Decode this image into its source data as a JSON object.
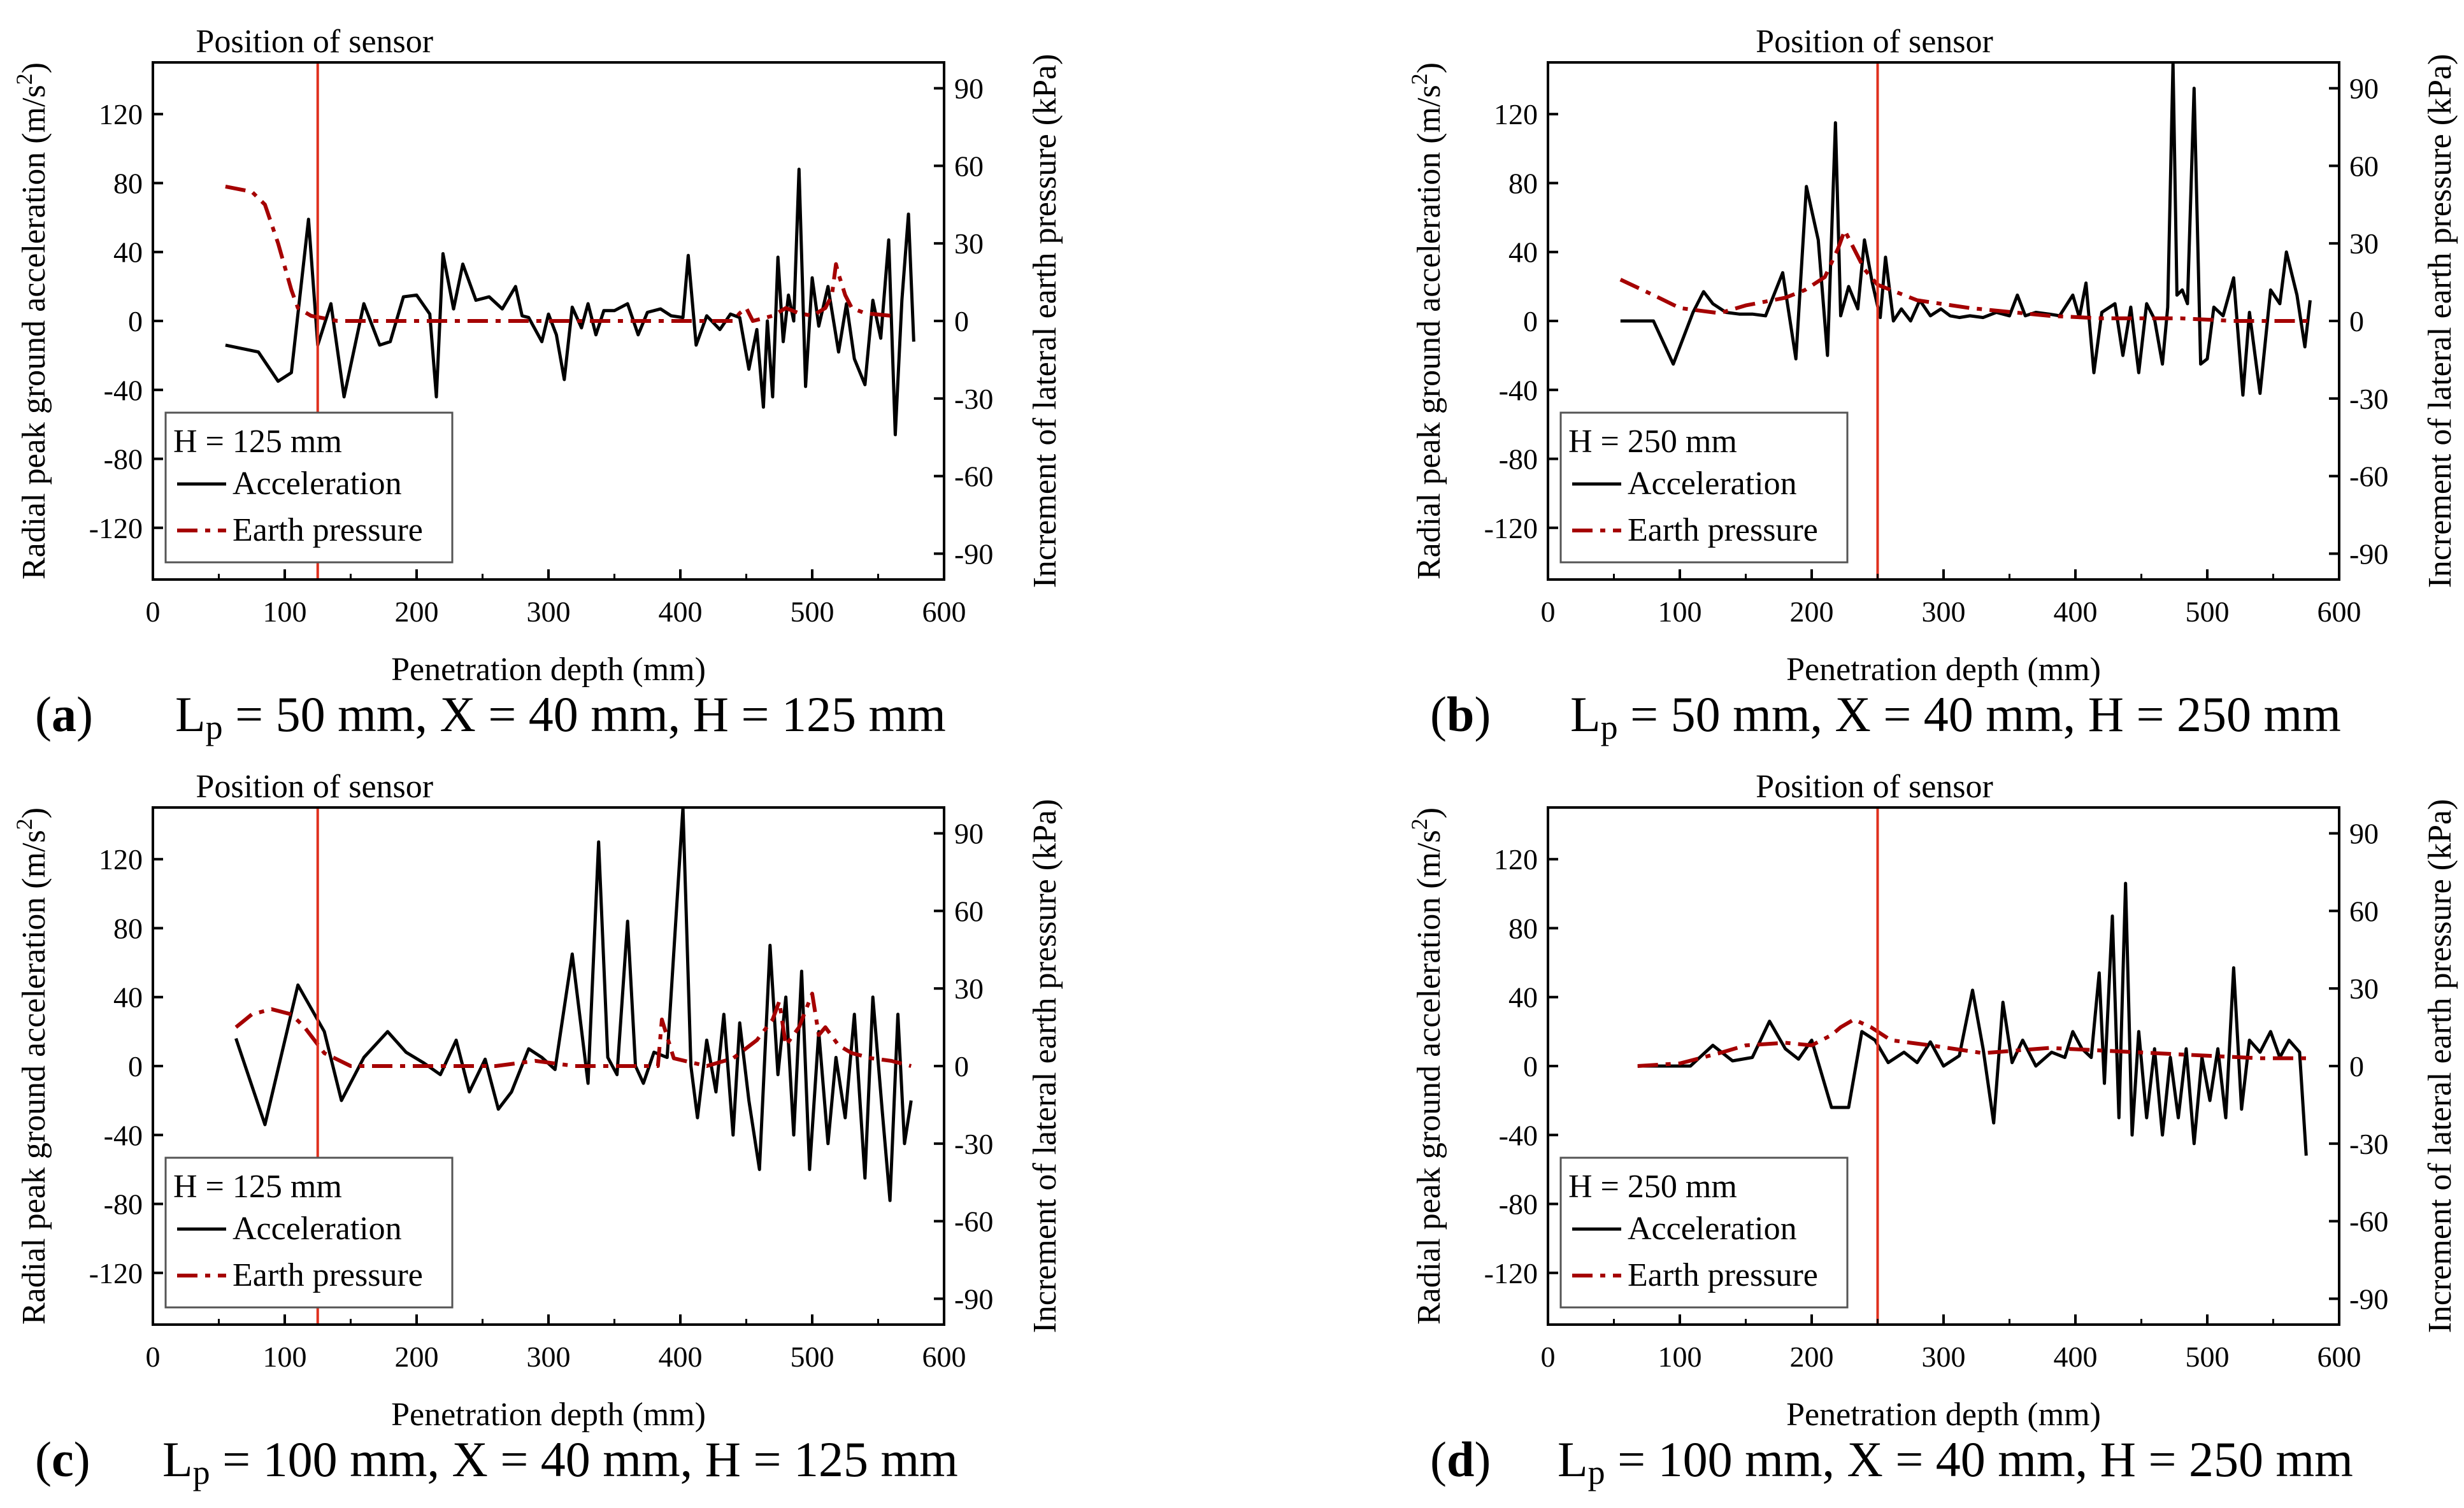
{
  "figure": {
    "panels": [
      {
        "id": "a",
        "letter": "a",
        "caption_prefix": "L",
        "caption_sub": "p",
        "caption_rest": " = 50 mm, X = 40 mm, H = 125 mm"
      },
      {
        "id": "b",
        "letter": "b",
        "caption_prefix": "L",
        "caption_sub": "p",
        "caption_rest": " = 50 mm, X = 40 mm, H = 250 mm"
      },
      {
        "id": "c",
        "letter": "c",
        "caption_prefix": "L",
        "caption_sub": "p",
        "caption_rest": " = 100 mm, X = 40 mm, H = 125 mm"
      },
      {
        "id": "d",
        "letter": "d",
        "caption_prefix": "L",
        "caption_sub": "p",
        "caption_rest": " = 100 mm, X = 40 mm, H = 250 mm"
      }
    ]
  },
  "colors": {
    "acceleration": "#000000",
    "earth_pressure": "#a50000",
    "sensor_line": "#e0301e",
    "axes": "#000000"
  },
  "chart_data": [
    {
      "id": "a",
      "type": "line",
      "title": "",
      "annotation": "Position of sensor",
      "sensor_position": 125,
      "xlabel": "Penetration depth (mm)",
      "ylabel": "Radial peak ground acceleration (m/s2)",
      "ylabel_main": "Radial peak ground acceleration (m/s",
      "ylabel_sup": "2",
      "ylabel_end": ")",
      "y2label": "Increment of lateral earth pressure (kPa)",
      "xlim": [
        0,
        600
      ],
      "ylim": [
        -150,
        150
      ],
      "y2lim": [
        -100,
        100
      ],
      "xticks": [
        0,
        100,
        200,
        300,
        400,
        500,
        600
      ],
      "yticks": [
        -120,
        -80,
        -40,
        0,
        40,
        80,
        120
      ],
      "y2ticks": [
        -90,
        -60,
        -30,
        0,
        30,
        60,
        90
      ],
      "legend_title": "H = 125 mm",
      "legend_position": "lower-left",
      "series": [
        {
          "name": "Acceleration",
          "axis": "left",
          "style": "solid",
          "x": [
            55,
            80,
            95,
            105,
            118,
            125,
            135,
            145,
            160,
            172,
            180,
            190,
            200,
            210,
            215,
            220,
            228,
            235,
            245,
            255,
            265,
            275,
            280,
            285,
            295,
            300,
            306,
            312,
            318,
            325,
            330,
            336,
            342,
            350,
            360,
            368,
            375,
            385,
            393,
            402,
            406,
            412,
            420,
            430,
            438,
            445,
            452,
            458,
            463,
            466,
            470,
            474,
            478,
            482,
            486,
            490,
            495,
            500,
            505,
            512,
            520,
            526,
            532,
            540,
            546,
            552,
            558,
            563,
            568,
            573,
            577
          ],
          "y": [
            -14,
            -18,
            -35,
            -30,
            59,
            -14,
            10,
            -44,
            10,
            -14,
            -12,
            14,
            15,
            4,
            -44,
            39,
            7,
            33,
            12,
            14,
            7,
            20,
            3,
            2,
            -12,
            4,
            -8,
            -34,
            8,
            -4,
            10,
            -8,
            6,
            6,
            10,
            -8,
            5,
            7,
            3,
            2,
            38,
            -14,
            3,
            -5,
            4,
            2,
            -28,
            -5,
            -50,
            0,
            -44,
            37,
            -12,
            15,
            0,
            88,
            -38,
            25,
            -3,
            20,
            -18,
            10,
            -22,
            -37,
            12,
            -10,
            47,
            -66,
            12,
            62,
            -12
          ]
        },
        {
          "name": "Earth pressure",
          "axis": "right",
          "style": "dashed",
          "x": [
            55,
            75,
            85,
            95,
            105,
            110,
            120,
            130,
            140,
            200,
            300,
            400,
            440,
            445,
            450,
            455,
            470,
            480,
            490,
            500,
            510,
            515,
            518,
            520,
            522,
            525,
            530,
            540,
            560
          ],
          "y": [
            52,
            50,
            45,
            30,
            12,
            5,
            2,
            1,
            0,
            0,
            0,
            0,
            0,
            3,
            5,
            0,
            2,
            5,
            3,
            2,
            5,
            10,
            22,
            18,
            15,
            10,
            5,
            3,
            2
          ]
        }
      ]
    },
    {
      "id": "b",
      "type": "line",
      "title": "",
      "annotation": "Position of sensor",
      "sensor_position": 250,
      "xlabel": "Penetration depth (mm)",
      "ylabel": "Radial peak ground acceleration (m/s2)",
      "ylabel_main": "Radial peak ground acceleration (m/s",
      "ylabel_sup": "2",
      "ylabel_end": ")",
      "y2label": "Increment of lateral earth pressure (kPa)",
      "xlim": [
        0,
        600
      ],
      "ylim": [
        -150,
        150
      ],
      "y2lim": [
        -100,
        100
      ],
      "xticks": [
        0,
        100,
        200,
        300,
        400,
        500,
        600
      ],
      "yticks": [
        -120,
        -80,
        -40,
        0,
        40,
        80,
        120
      ],
      "y2ticks": [
        -90,
        -60,
        -30,
        0,
        30,
        60,
        90
      ],
      "legend_title": "H = 250 mm",
      "legend_position": "lower-left",
      "series": [
        {
          "name": "Acceleration",
          "axis": "left",
          "style": "solid",
          "x": [
            55,
            70,
            80,
            95,
            110,
            118,
            125,
            135,
            145,
            155,
            165,
            178,
            188,
            196,
            205,
            212,
            218,
            222,
            228,
            235,
            240,
            246,
            252,
            256,
            262,
            268,
            275,
            282,
            290,
            298,
            305,
            312,
            320,
            330,
            340,
            350,
            356,
            362,
            370,
            380,
            388,
            398,
            403,
            408,
            414,
            420,
            430,
            436,
            442,
            448,
            454,
            460,
            466,
            470,
            474,
            477,
            481,
            485,
            490,
            495,
            500,
            505,
            512,
            520,
            527,
            532,
            540,
            548,
            555,
            560,
            568,
            574,
            578
          ],
          "y": [
            0,
            0,
            0,
            -25,
            5,
            17,
            10,
            5,
            4,
            4,
            3,
            28,
            -22,
            78,
            47,
            -20,
            115,
            3,
            20,
            7,
            47,
            22,
            2,
            37,
            0,
            7,
            0,
            12,
            3,
            7,
            3,
            2,
            3,
            2,
            5,
            3,
            15,
            3,
            5,
            4,
            3,
            15,
            2,
            22,
            -30,
            5,
            10,
            -20,
            8,
            -30,
            10,
            1,
            -25,
            8,
            150,
            15,
            18,
            10,
            135,
            -25,
            -22,
            8,
            3,
            25,
            -43,
            5,
            -42,
            18,
            10,
            40,
            15,
            -15,
            12
          ]
        },
        {
          "name": "Earth pressure",
          "axis": "right",
          "style": "dashed",
          "x": [
            55,
            80,
            100,
            130,
            150,
            180,
            195,
            210,
            220,
            225,
            230,
            240,
            250,
            280,
            320,
            380,
            420,
            480,
            520,
            578
          ],
          "y": [
            16,
            10,
            5,
            3,
            6,
            9,
            12,
            17,
            28,
            35,
            30,
            20,
            14,
            8,
            5,
            2,
            1,
            1,
            0,
            0
          ]
        }
      ]
    },
    {
      "id": "c",
      "type": "line",
      "title": "",
      "annotation": "Position of sensor",
      "sensor_position": 125,
      "xlabel": "Penetration depth (mm)",
      "ylabel": "Radial peak ground acceleration (m/s2)",
      "ylabel_main": "Radial peak ground acceleration (m/s",
      "ylabel_sup": "2",
      "ylabel_end": ")",
      "y2label": "Increment of lateral earth pressure (kPa)",
      "xlim": [
        0,
        600
      ],
      "ylim": [
        -150,
        150
      ],
      "y2lim": [
        -100,
        100
      ],
      "xticks": [
        0,
        100,
        200,
        300,
        400,
        500,
        600
      ],
      "yticks": [
        -120,
        -80,
        -40,
        0,
        40,
        80,
        120
      ],
      "y2ticks": [
        -90,
        -60,
        -30,
        0,
        30,
        60,
        90
      ],
      "legend_title": "H = 125 mm",
      "legend_position": "lower-left",
      "series": [
        {
          "name": "Acceleration",
          "axis": "left",
          "style": "solid",
          "x": [
            63,
            85,
            110,
            130,
            143,
            160,
            178,
            192,
            205,
            218,
            230,
            240,
            252,
            262,
            272,
            285,
            295,
            305,
            318,
            330,
            338,
            345,
            352,
            360,
            366,
            372,
            380,
            390,
            402,
            408,
            413,
            420,
            427,
            433,
            440,
            445,
            452,
            460,
            468,
            474,
            480,
            486,
            492,
            498,
            505,
            512,
            518,
            525,
            532,
            540,
            546,
            553,
            559,
            565,
            570,
            575
          ],
          "y": [
            16,
            -34,
            47,
            20,
            -20,
            5,
            20,
            8,
            2,
            -5,
            15,
            -15,
            4,
            -25,
            -15,
            10,
            5,
            -2,
            65,
            -10,
            130,
            5,
            -5,
            84,
            0,
            -10,
            8,
            5,
            150,
            0,
            -30,
            15,
            -15,
            30,
            -40,
            25,
            -20,
            -60,
            70,
            -5,
            40,
            -40,
            55,
            -60,
            20,
            -45,
            5,
            -30,
            30,
            -65,
            40,
            -25,
            -78,
            30,
            -45,
            -20
          ]
        },
        {
          "name": "Earth pressure",
          "axis": "right",
          "style": "dashed",
          "x": [
            63,
            75,
            90,
            105,
            115,
            130,
            150,
            200,
            260,
            290,
            320,
            370,
            383,
            386,
            395,
            420,
            440,
            458,
            470,
            475,
            480,
            490,
            500,
            505,
            510,
            520,
            530,
            545,
            560,
            575
          ],
          "y": [
            15,
            20,
            22,
            20,
            15,
            5,
            0,
            0,
            0,
            2,
            0,
            0,
            0,
            18,
            3,
            0,
            3,
            10,
            18,
            25,
            8,
            15,
            28,
            12,
            15,
            8,
            5,
            3,
            2,
            0
          ]
        }
      ]
    },
    {
      "id": "d",
      "type": "line",
      "title": "",
      "annotation": "Position of sensor",
      "sensor_position": 250,
      "xlabel": "Penetration depth (mm)",
      "ylabel": "Radial peak ground acceleration (m/s2)",
      "ylabel_main": "Radial peak ground acceleration (m/s",
      "ylabel_sup": "2",
      "ylabel_end": ")",
      "y2label": "Increment of lateral earth pressure (kPa)",
      "xlim": [
        0,
        600
      ],
      "ylim": [
        -150,
        150
      ],
      "y2lim": [
        -100,
        100
      ],
      "xticks": [
        0,
        100,
        200,
        300,
        400,
        500,
        600
      ],
      "yticks": [
        -120,
        -80,
        -40,
        0,
        40,
        80,
        120
      ],
      "y2ticks": [
        -90,
        -60,
        -30,
        0,
        30,
        60,
        90
      ],
      "legend_title": "H = 250 mm",
      "legend_position": "lower-left",
      "series": [
        {
          "name": "Acceleration",
          "axis": "left",
          "style": "solid",
          "x": [
            68,
            90,
            108,
            125,
            140,
            155,
            168,
            180,
            190,
            200,
            215,
            228,
            238,
            248,
            258,
            270,
            280,
            290,
            300,
            312,
            322,
            330,
            338,
            345,
            352,
            360,
            370,
            382,
            392,
            398,
            405,
            412,
            418,
            422,
            428,
            433,
            438,
            443,
            448,
            454,
            460,
            466,
            472,
            478,
            484,
            490,
            496,
            502,
            508,
            514,
            520,
            526,
            532,
            540,
            548,
            555,
            562,
            570,
            575
          ],
          "y": [
            0,
            0,
            0,
            12,
            3,
            5,
            26,
            10,
            4,
            15,
            -24,
            -24,
            20,
            15,
            2,
            8,
            2,
            14,
            0,
            6,
            44,
            10,
            -33,
            37,
            2,
            15,
            0,
            8,
            5,
            20,
            10,
            5,
            54,
            -10,
            87,
            -30,
            106,
            -40,
            20,
            -30,
            10,
            -40,
            5,
            -30,
            10,
            -45,
            5,
            -20,
            10,
            -30,
            57,
            -25,
            15,
            8,
            20,
            5,
            15,
            8,
            -52
          ]
        },
        {
          "name": "Earth pressure",
          "axis": "right",
          "style": "dashed",
          "x": [
            68,
            100,
            130,
            150,
            180,
            200,
            215,
            222,
            232,
            245,
            260,
            290,
            330,
            380,
            420,
            460,
            500,
            540,
            575
          ],
          "y": [
            0,
            1,
            5,
            8,
            9,
            8,
            12,
            15,
            18,
            15,
            10,
            8,
            5,
            7,
            6,
            5,
            4,
            3,
            3
          ]
        }
      ]
    }
  ]
}
